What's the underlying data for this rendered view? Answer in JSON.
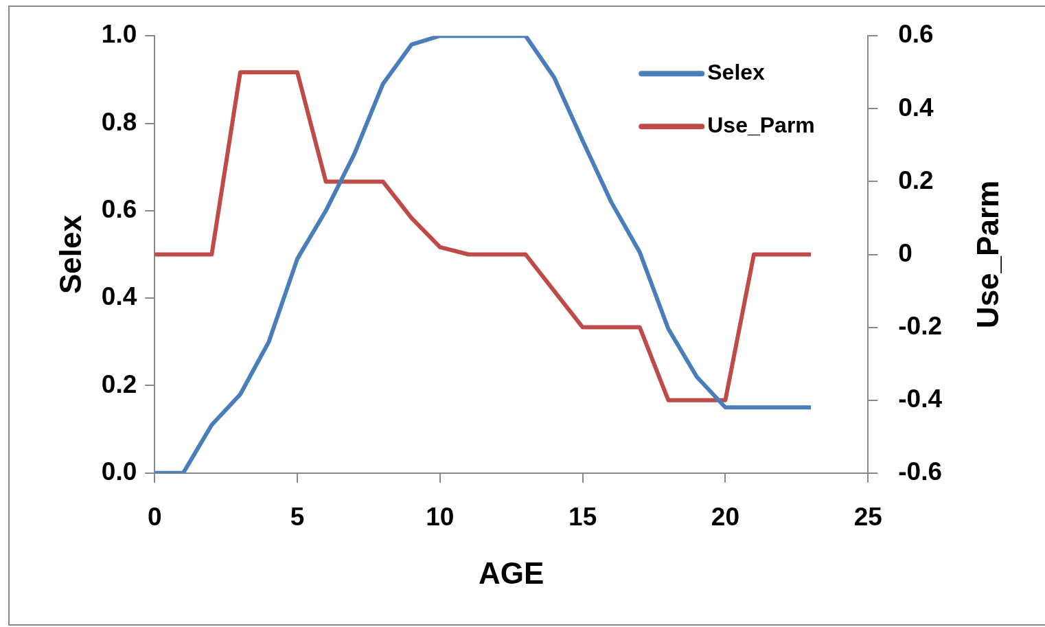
{
  "chart_data": {
    "type": "line",
    "xlabel": "AGE",
    "ylabel": "Selex",
    "y2label": "Use_Parm",
    "x": [
      0,
      1,
      2,
      3,
      4,
      5,
      6,
      7,
      8,
      9,
      10,
      11,
      12,
      13,
      14,
      15,
      16,
      17,
      18,
      19,
      20,
      21,
      22,
      23
    ],
    "series": [
      {
        "name": "Selex",
        "color": "#4a7ebb",
        "values": [
          0,
          0,
          0.11,
          0.18,
          0.3,
          0.49,
          0.6,
          0.73,
          0.89,
          0.98,
          1.0,
          1.0,
          1.0,
          1.0,
          0.905,
          0.76,
          0.62,
          0.505,
          0.33,
          0.22,
          0.15,
          0.15,
          0.15,
          0.15
        ]
      },
      {
        "name": "Use_Parm",
        "color": "#be4b48",
        "axis": "y2",
        "values": [
          0,
          0,
          0,
          0.5,
          0.5,
          0.5,
          0.2,
          0.2,
          0.2,
          0.1,
          0.02,
          0,
          0,
          0,
          -0.1,
          -0.2,
          -0.2,
          -0.2,
          -0.4,
          -0.4,
          -0.4,
          0,
          0,
          0
        ]
      }
    ],
    "xlim": [
      0,
      25
    ],
    "xticks": [
      0,
      5,
      10,
      15,
      20,
      25
    ],
    "ylim": [
      0,
      1
    ],
    "yticks": [
      {
        "value": 0,
        "label": "0.0"
      },
      {
        "value": 0.2,
        "label": "0.2"
      },
      {
        "value": 0.4,
        "label": "0.4"
      },
      {
        "value": 0.6,
        "label": "0.6"
      },
      {
        "value": 0.8,
        "label": "0.8"
      },
      {
        "value": 1,
        "label": "1.0"
      }
    ],
    "y2lim": [
      -0.6,
      0.6
    ],
    "y2ticks": [
      -0.6,
      -0.4,
      -0.2,
      0,
      0.2,
      0.4,
      0.6
    ],
    "grid": false,
    "legend": "top right",
    "marker": "none",
    "line_style": "solid"
  }
}
